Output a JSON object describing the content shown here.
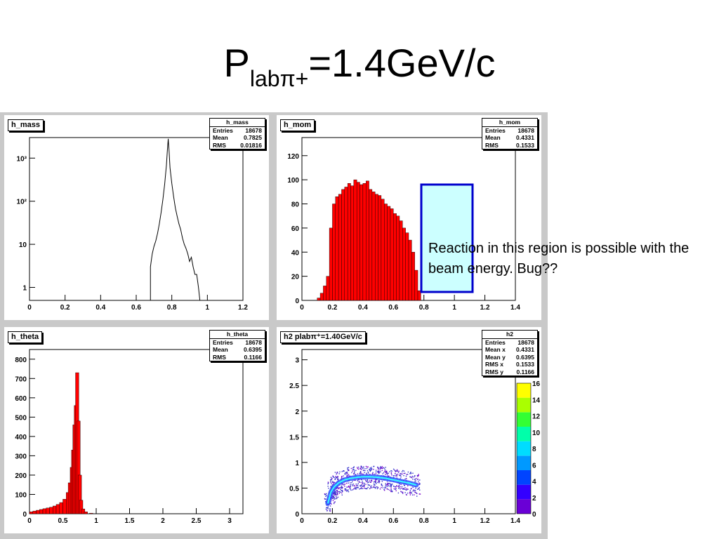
{
  "slide": {
    "title_main": "P",
    "title_sub": "labπ+",
    "title_rest": "=1.4GeV/c"
  },
  "annotation": {
    "text": "Reaction in this region is possible with the beam energy. Bug??",
    "box_fill": "#ccffff",
    "box_stroke": "#0000cc"
  },
  "colors": {
    "hist_fill": "#ff0000",
    "frame_bg": "#c9c9c9",
    "pad_bg": "#ffffff"
  },
  "pads": [
    {
      "id": "h_mass",
      "title": "h_mass",
      "stats": {
        "title": "h_mass",
        "rows": [
          {
            "label": "Entries",
            "value": "18678"
          },
          {
            "label": "Mean",
            "value": "0.7825"
          },
          {
            "label": "RMS",
            "value": "0.01816"
          }
        ]
      }
    },
    {
      "id": "h_mom",
      "title": "h_mom",
      "stats": {
        "title": "h_mom",
        "rows": [
          {
            "label": "Entries",
            "value": "18678"
          },
          {
            "label": "Mean",
            "value": "0.4331"
          },
          {
            "label": "RMS",
            "value": "0.1533"
          }
        ]
      }
    },
    {
      "id": "h_theta",
      "title": "h_theta",
      "stats": {
        "title": "h_theta",
        "rows": [
          {
            "label": "Entries",
            "value": "18678"
          },
          {
            "label": "Mean",
            "value": "0.6395"
          },
          {
            "label": "RMS",
            "value": "0.1166"
          }
        ]
      }
    },
    {
      "id": "h2",
      "title": "h2 plabπ⁺=1.40GeV/c",
      "stats": {
        "title": "h2",
        "rows": [
          {
            "label": "Entries",
            "value": "18678"
          },
          {
            "label": "Mean x",
            "value": "0.4331"
          },
          {
            "label": "Mean y",
            "value": "0.6395"
          },
          {
            "label": "RMS x",
            "value": "0.1533"
          },
          {
            "label": "RMS y",
            "value": "0.1166"
          }
        ]
      }
    }
  ],
  "chart_data": [
    {
      "type": "line",
      "name": "h_mass",
      "log_y": true,
      "xlim": [
        0,
        1.2
      ],
      "ylim": [
        0.5,
        3000
      ],
      "xticks": [
        0,
        0.2,
        0.4,
        0.6,
        0.8,
        1,
        1.2
      ],
      "xtick_labels": [
        "0",
        "0.2",
        "0.4",
        "0.6",
        "0.8",
        "1",
        "1.2"
      ],
      "yticks": [
        1,
        10,
        100,
        1000
      ],
      "ytick_labels": [
        "1",
        "10",
        "10²",
        "10³"
      ],
      "x": [
        0.68,
        0.69,
        0.7,
        0.71,
        0.72,
        0.73,
        0.74,
        0.75,
        0.76,
        0.77,
        0.775,
        0.78,
        0.785,
        0.79,
        0.8,
        0.81,
        0.82,
        0.83,
        0.84,
        0.85,
        0.86,
        0.87,
        0.88,
        0.89,
        0.9,
        0.91,
        0.92,
        0.93,
        0.94,
        0.95
      ],
      "y": [
        3,
        6,
        9,
        12,
        18,
        30,
        55,
        110,
        250,
        700,
        1500,
        2800,
        1400,
        600,
        260,
        130,
        70,
        45,
        30,
        22,
        14,
        10,
        8,
        6,
        4,
        5,
        3,
        2,
        2,
        1
      ]
    },
    {
      "type": "bar",
      "name": "h_mom",
      "xlim": [
        0,
        1.4
      ],
      "ylim": [
        0,
        135
      ],
      "xticks": [
        0,
        0.2,
        0.4,
        0.6,
        0.8,
        1,
        1.2,
        1.4
      ],
      "xtick_labels": [
        "0",
        "0.2",
        "0.4",
        "0.6",
        "0.8",
        "1",
        "1.2",
        "1.4"
      ],
      "yticks": [
        0,
        20,
        40,
        60,
        80,
        100,
        120
      ],
      "ytick_labels": [
        "0",
        "20",
        "40",
        "60",
        "80",
        "100",
        "120"
      ],
      "x": [
        0.1,
        0.12,
        0.14,
        0.16,
        0.18,
        0.2,
        0.22,
        0.24,
        0.26,
        0.28,
        0.3,
        0.32,
        0.34,
        0.36,
        0.38,
        0.4,
        0.42,
        0.44,
        0.46,
        0.48,
        0.5,
        0.52,
        0.54,
        0.56,
        0.58,
        0.6,
        0.62,
        0.64,
        0.66,
        0.68,
        0.7,
        0.72,
        0.74,
        0.76
      ],
      "y": [
        2,
        6,
        12,
        20,
        60,
        80,
        86,
        88,
        92,
        94,
        97,
        95,
        100,
        98,
        96,
        97,
        99,
        92,
        90,
        88,
        87,
        84,
        80,
        78,
        76,
        72,
        70,
        66,
        60,
        56,
        50,
        40,
        25,
        8
      ]
    },
    {
      "type": "bar",
      "name": "h_theta",
      "xlim": [
        0,
        3.2
      ],
      "ylim": [
        0,
        850
      ],
      "xticks": [
        0,
        0.5,
        1,
        1.5,
        2,
        2.5,
        3
      ],
      "xtick_labels": [
        "0",
        "0.5",
        "1",
        "1.5",
        "2",
        "2.5",
        "3"
      ],
      "yticks": [
        0,
        100,
        200,
        300,
        400,
        500,
        600,
        700,
        800
      ],
      "ytick_labels": [
        "0",
        "100",
        "200",
        "300",
        "400",
        "500",
        "600",
        "700",
        "800"
      ],
      "x": [
        0.0,
        0.05,
        0.1,
        0.15,
        0.2,
        0.25,
        0.3,
        0.35,
        0.4,
        0.45,
        0.5,
        0.55,
        0.58,
        0.61,
        0.63,
        0.65,
        0.67,
        0.69,
        0.71,
        0.73,
        0.75,
        0.78,
        0.82,
        0.9,
        1.0
      ],
      "y": [
        10,
        14,
        18,
        22,
        26,
        30,
        34,
        40,
        48,
        58,
        75,
        110,
        160,
        240,
        330,
        460,
        560,
        730,
        480,
        200,
        70,
        25,
        10,
        3,
        1
      ]
    },
    {
      "type": "heatmap",
      "name": "h2",
      "xlim": [
        0,
        1.4
      ],
      "ylim": [
        0,
        3.2
      ],
      "xticks": [
        0,
        0.2,
        0.4,
        0.6,
        0.8,
        1,
        1.2,
        1.4
      ],
      "xtick_labels": [
        "0",
        "0.2",
        "0.4",
        "0.6",
        "0.8",
        "1",
        "1.2",
        "1.4"
      ],
      "yticks": [
        0,
        0.5,
        1,
        1.5,
        2,
        2.5,
        3
      ],
      "ytick_labels": [
        "0",
        "0.5",
        "1",
        "1.5",
        "2",
        "2.5",
        "3"
      ],
      "band_x": [
        0.17,
        0.19,
        0.21,
        0.24,
        0.28,
        0.32,
        0.36,
        0.4,
        0.45,
        0.5,
        0.55,
        0.6,
        0.65,
        0.7,
        0.75
      ],
      "band_y": [
        0.2,
        0.42,
        0.52,
        0.6,
        0.66,
        0.69,
        0.71,
        0.72,
        0.72,
        0.71,
        0.69,
        0.66,
        0.63,
        0.6,
        0.56
      ],
      "zlim": [
        0,
        16
      ],
      "zticks": [
        0,
        2,
        4,
        6,
        8,
        10,
        12,
        14,
        16
      ],
      "ztick_labels": [
        "0",
        "2",
        "4",
        "6",
        "8",
        "10",
        "12",
        "14",
        "16"
      ]
    }
  ]
}
